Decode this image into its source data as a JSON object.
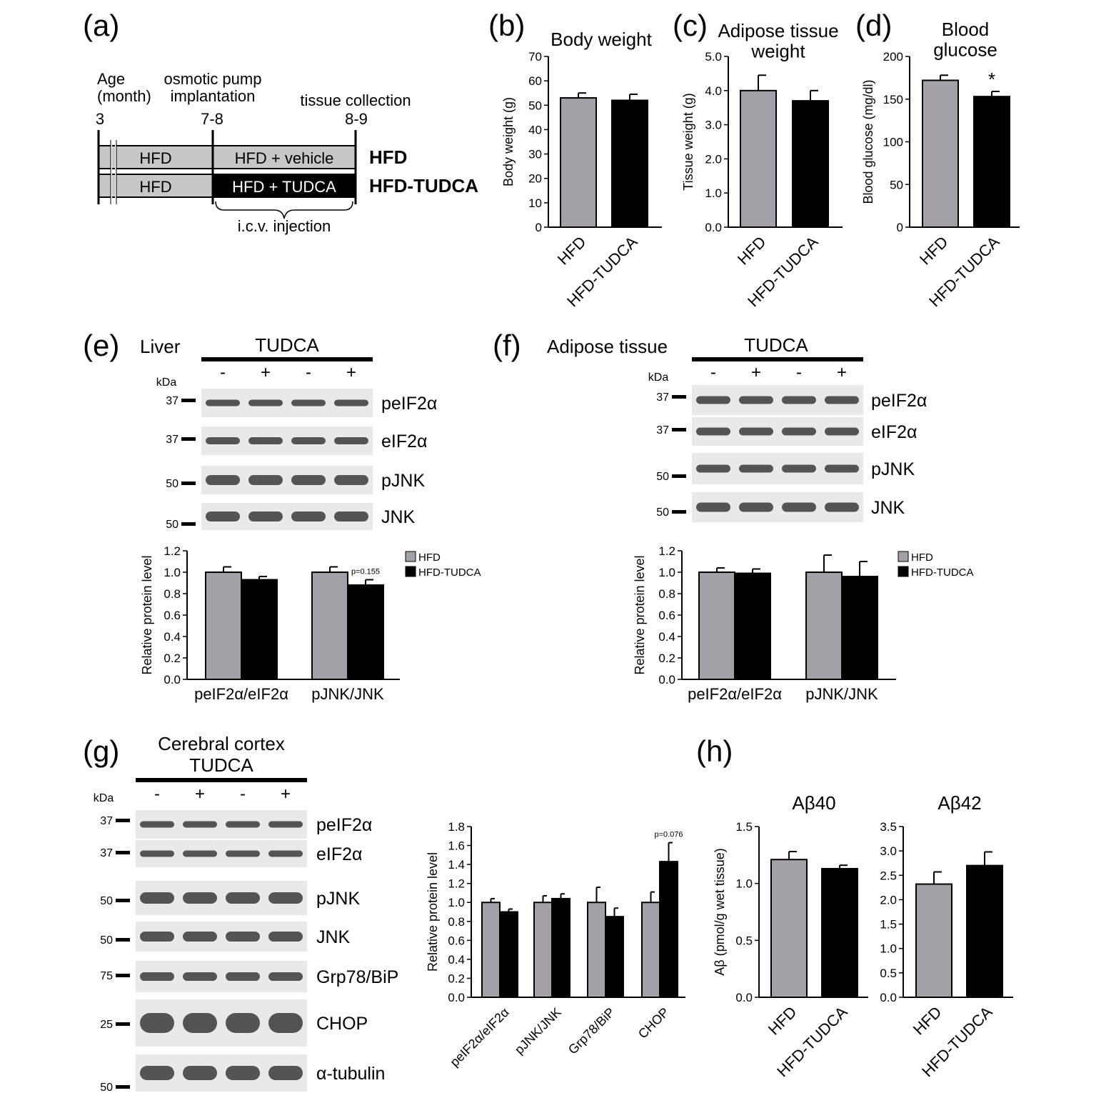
{
  "colors": {
    "hfd": "#a59fa8",
    "tudca": "#000000",
    "blot_bg": "#e9e9e9",
    "band": "#3a3a3a"
  },
  "panel_a": {
    "label": "(a)",
    "age_label": "Age\n(month)",
    "pump_label": "osmotic pump\nimplantation",
    "collect_label": "tissue collection",
    "t1": "3",
    "t2": "7-8",
    "t3": "8-9",
    "row1_left": "HFD",
    "row1_right": "HFD + vehicle",
    "row1_group": "HFD",
    "row2_left": "HFD",
    "row2_right": "HFD + TUDCA",
    "row2_group": "HFD-TUDCA",
    "injection": "i.c.v. injection"
  },
  "panel_e": {
    "label": "(e)",
    "tissue": "Liver",
    "treatment": "TUDCA",
    "kda": "kDa",
    "lanes": [
      "-",
      "+",
      "-",
      "+"
    ],
    "proteins": [
      "peIF2α",
      "eIF2α",
      "pJNK",
      "JNK"
    ],
    "markers": [
      "37",
      "37",
      "50",
      "50"
    ]
  },
  "panel_f": {
    "label": "(f)",
    "tissue": "Adipose tissue",
    "treatment": "TUDCA",
    "kda": "kDa",
    "lanes": [
      "-",
      "+",
      "-",
      "+"
    ],
    "proteins": [
      "peIF2α",
      "eIF2α",
      "pJNK",
      "JNK"
    ],
    "markers": [
      "37",
      "37",
      "50",
      "50"
    ]
  },
  "panel_g": {
    "label": "(g)",
    "tissue": "Cerebral cortex",
    "treatment": "TUDCA",
    "kda": "kDa",
    "lanes": [
      "-",
      "+",
      "-",
      "+"
    ],
    "proteins": [
      "peIF2α",
      "eIF2α",
      "pJNK",
      "JNK",
      "Grp78/BiP",
      "CHOP",
      "α-tubulin"
    ],
    "markers": [
      "37",
      "37",
      "50",
      "50",
      "75",
      "25",
      "50"
    ]
  },
  "panel_h": {
    "label": "(h)"
  },
  "chart_data": [
    {
      "id": "b",
      "type": "bar",
      "label": "(b)",
      "title": "Body weight",
      "ylabel": "Body weight (g)",
      "ylim": [
        0,
        70
      ],
      "yticks": [
        "0",
        "10",
        "20",
        "30",
        "40",
        "50",
        "60",
        "70"
      ],
      "categories": [
        "HFD",
        "HFD-TUDCA"
      ],
      "values": [
        53,
        52
      ],
      "errors": [
        2,
        2.5
      ]
    },
    {
      "id": "c",
      "type": "bar",
      "label": "(c)",
      "title": "Adipose tissue\nweight",
      "ylabel": "Tissue weight (g)",
      "ylim": [
        0,
        5
      ],
      "yticks": [
        "0.0",
        "1.0",
        "2.0",
        "3.0",
        "4.0",
        "5.0"
      ],
      "categories": [
        "HFD",
        "HFD-TUDCA"
      ],
      "values": [
        4.0,
        3.7
      ],
      "errors": [
        0.45,
        0.3
      ]
    },
    {
      "id": "d",
      "type": "bar",
      "label": "(d)",
      "title": "Blood\nglucose",
      "ylabel": "Blood glucose (mg/dl)",
      "ylim": [
        0,
        200
      ],
      "yticks": [
        "0",
        "50",
        "100",
        "150",
        "200"
      ],
      "categories": [
        "HFD",
        "HFD-TUDCA"
      ],
      "values": [
        172,
        153
      ],
      "errors": [
        6,
        6
      ],
      "annotation": "*"
    },
    {
      "id": "e",
      "type": "bar",
      "ylabel": "Relative protein level",
      "ylim": [
        0,
        1.2
      ],
      "yticks": [
        "0.0",
        "0.2",
        "0.4",
        "0.6",
        "0.8",
        "1.0",
        "1.2"
      ],
      "categories": [
        "peIF2α/eIF2α",
        "pJNK/JNK"
      ],
      "series": [
        {
          "name": "HFD",
          "values": [
            1.0,
            1.0
          ],
          "errors": [
            0.05,
            0.05
          ]
        },
        {
          "name": "HFD-TUDCA",
          "values": [
            0.93,
            0.88
          ],
          "errors": [
            0.03,
            0.05
          ]
        }
      ],
      "annotation": "p=0.155",
      "legend": "top-right"
    },
    {
      "id": "f",
      "type": "bar",
      "ylabel": "Relative protein level",
      "ylim": [
        0,
        1.2
      ],
      "yticks": [
        "0.0",
        "0.2",
        "0.4",
        "0.6",
        "0.8",
        "1.0",
        "1.2"
      ],
      "categories": [
        "peIF2α/eIF2α",
        "pJNK/JNK"
      ],
      "series": [
        {
          "name": "HFD",
          "values": [
            1.0,
            1.0
          ],
          "errors": [
            0.04,
            0.16
          ]
        },
        {
          "name": "HFD-TUDCA",
          "values": [
            0.99,
            0.96
          ],
          "errors": [
            0.04,
            0.14
          ]
        }
      ],
      "legend": "top-right"
    },
    {
      "id": "g",
      "type": "bar",
      "ylabel": "Relative protein level",
      "ylim": [
        0,
        1.8
      ],
      "yticks": [
        "0.0",
        "0.2",
        "0.4",
        "0.6",
        "0.8",
        "1.0",
        "1.2",
        "1.4",
        "1.6",
        "1.8"
      ],
      "categories": [
        "peIF2α/eIF2α",
        "pJNK/JNK",
        "Grp78/BiP",
        "CHOP"
      ],
      "series": [
        {
          "values": [
            1.0,
            1.0,
            1.0,
            1.0
          ],
          "errors": [
            0.04,
            0.07,
            0.16,
            0.11
          ]
        },
        {
          "values": [
            0.9,
            1.04,
            0.85,
            1.43
          ],
          "errors": [
            0.03,
            0.05,
            0.09,
            0.2
          ]
        }
      ],
      "annotation": "p=0.076"
    },
    {
      "id": "h1",
      "type": "bar",
      "title": "Aβ40",
      "ylabel": "Aβ (pmol/g wet tissue)",
      "ylim": [
        0,
        1.5
      ],
      "yticks": [
        "0.0",
        "0.5",
        "1.0",
        "1.5"
      ],
      "categories": [
        "HFD",
        "HFD-TUDCA"
      ],
      "values": [
        1.21,
        1.13
      ],
      "errors": [
        0.07,
        0.03
      ]
    },
    {
      "id": "h2",
      "type": "bar",
      "title": "Aβ42",
      "ylabel": "",
      "ylim": [
        0,
        3.5
      ],
      "yticks": [
        "0.0",
        "0.5",
        "1.0",
        "1.5",
        "2.0",
        "2.5",
        "3.0",
        "3.5"
      ],
      "categories": [
        "HFD",
        "HFD-TUDCA"
      ],
      "values": [
        2.32,
        2.7
      ],
      "errors": [
        0.25,
        0.28
      ]
    }
  ]
}
